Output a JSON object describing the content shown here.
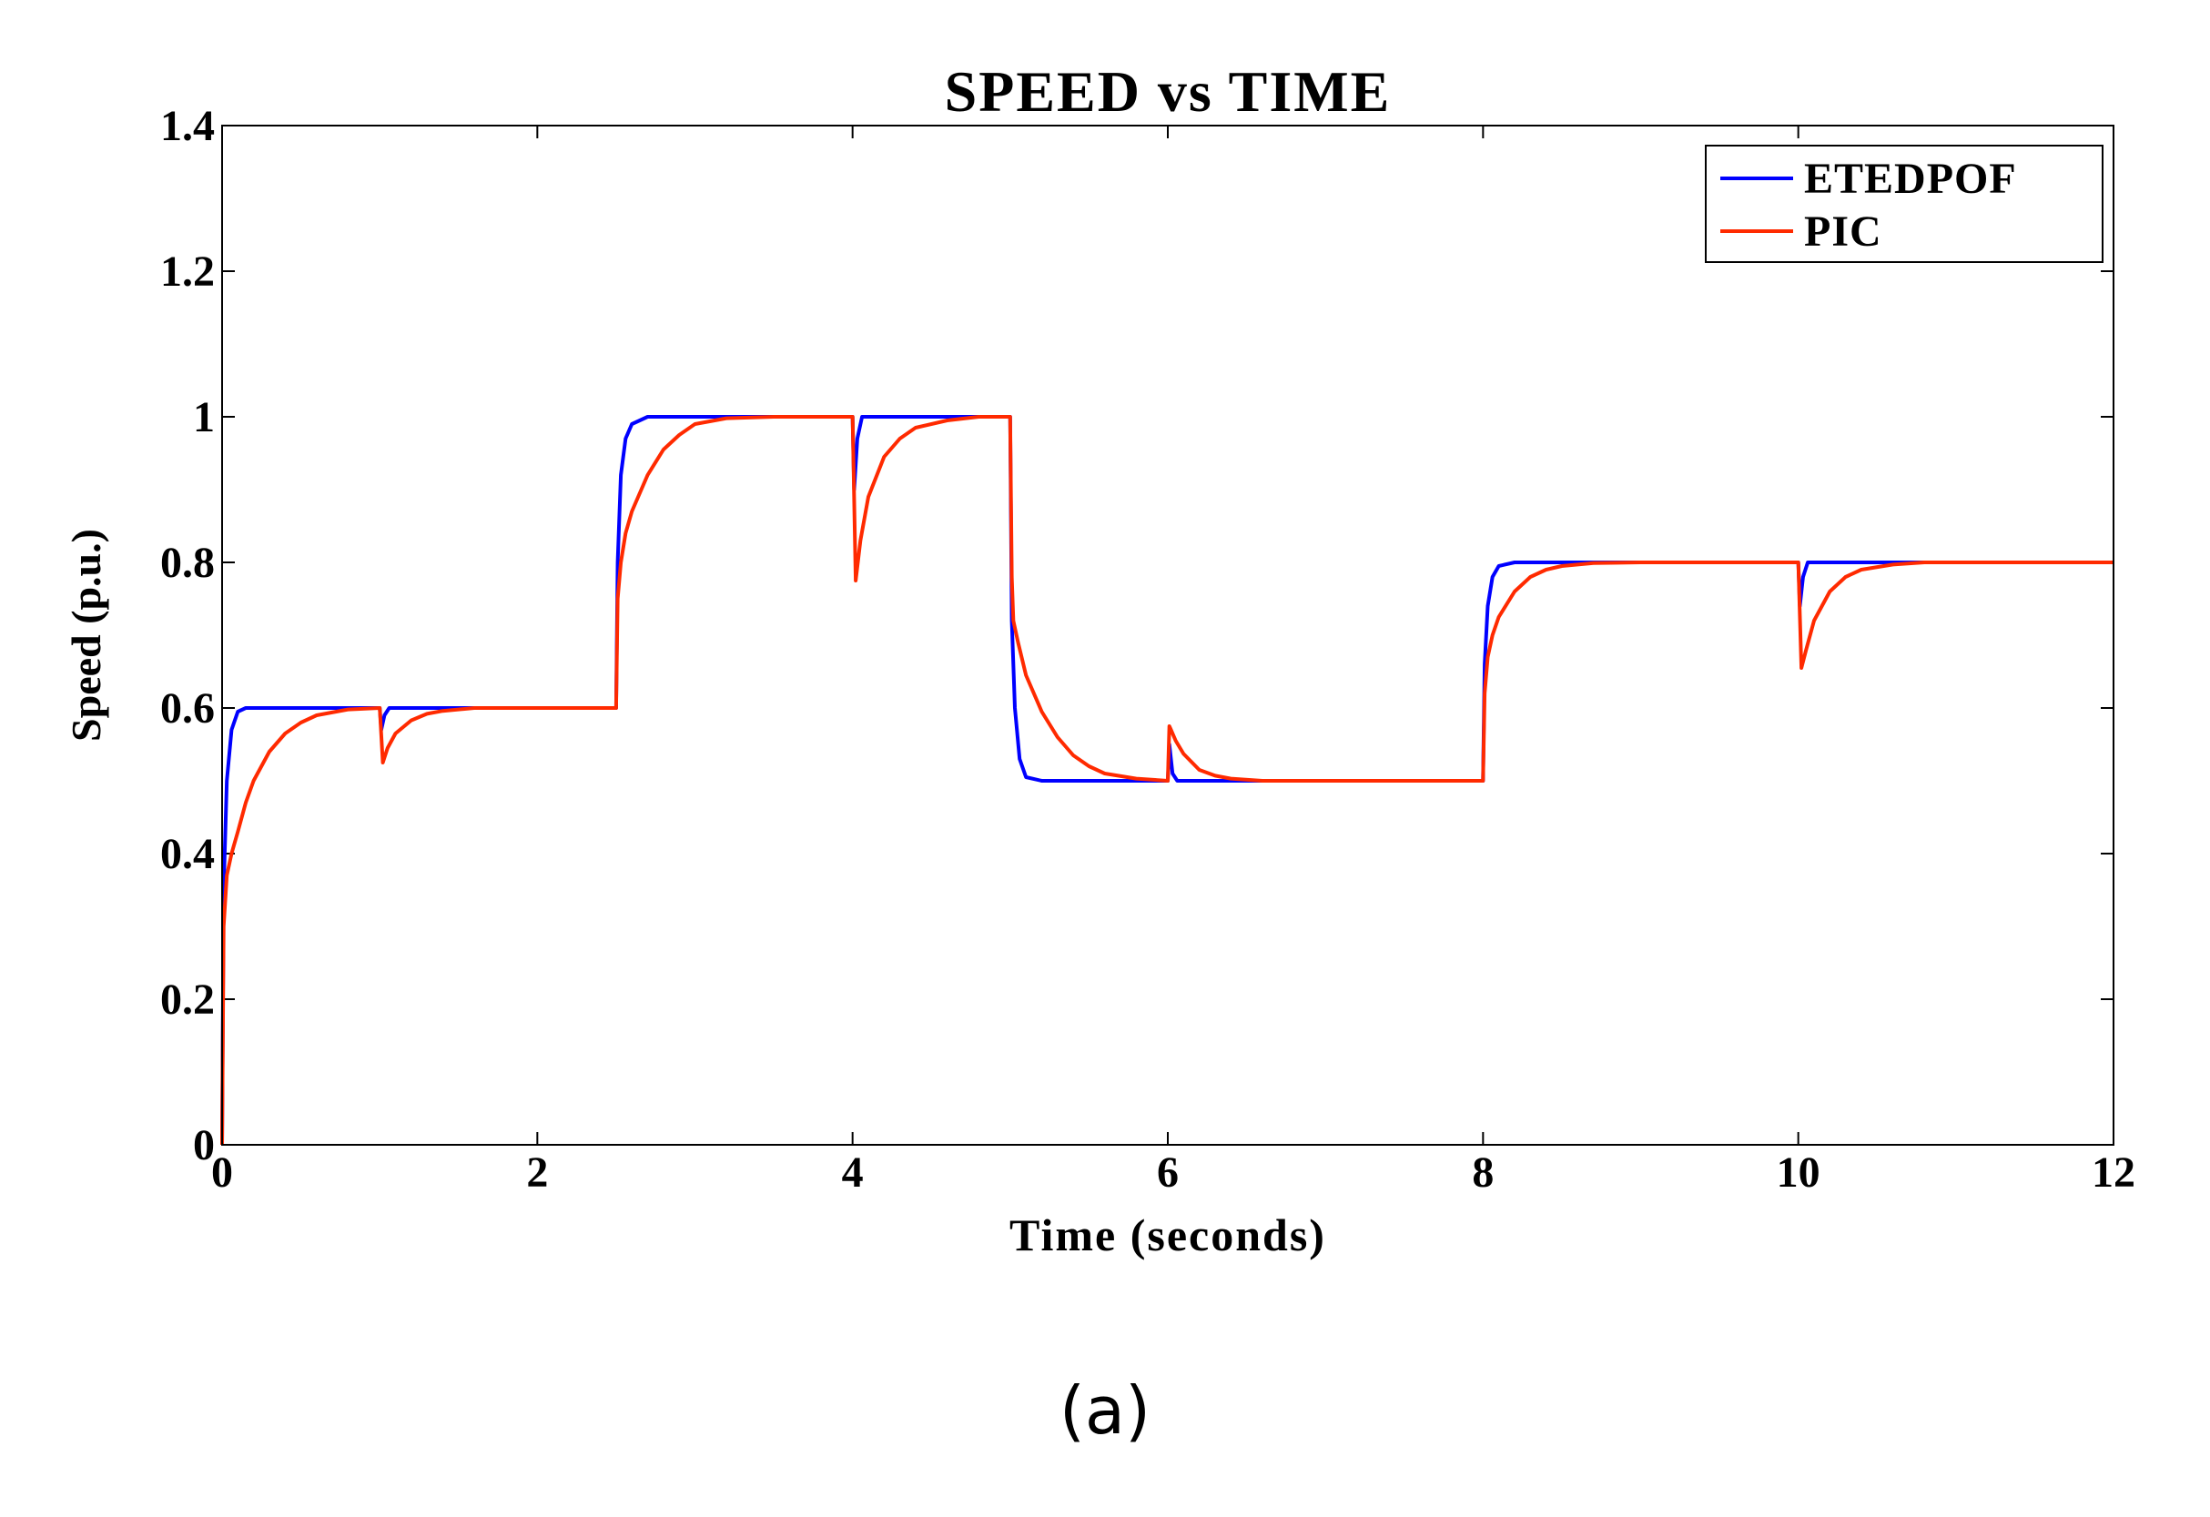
{
  "caption": "(a)",
  "chart_data": {
    "type": "line",
    "title": "SPEED vs TIME",
    "xlabel": "Time (seconds)",
    "ylabel": "Speed (p.u.)",
    "xlim": [
      0,
      12
    ],
    "ylim": [
      0,
      1.4
    ],
    "xticks": [
      0,
      2,
      4,
      6,
      8,
      10,
      12
    ],
    "xtick_labels": [
      "0",
      "2",
      "4",
      "6",
      "8",
      "10",
      "12"
    ],
    "yticks": [
      0,
      0.2,
      0.4,
      0.6,
      0.8,
      1.0,
      1.2,
      1.4
    ],
    "ytick_labels": [
      "0",
      "0.2",
      "0.4",
      "0.6",
      "0.8",
      "1",
      "1.2",
      "1.4"
    ],
    "grid": false,
    "legend_position": "top-right",
    "series": [
      {
        "name": "ETEDPOF",
        "color": "#0000ff",
        "x": [
          0,
          0.01,
          0.03,
          0.06,
          0.1,
          0.15,
          1.0,
          1.01,
          1.03,
          1.06,
          2.5,
          2.51,
          2.53,
          2.56,
          2.6,
          2.7,
          4.0,
          4.01,
          4.03,
          4.06,
          4.15,
          5.0,
          5.01,
          5.03,
          5.06,
          5.1,
          5.2,
          6.0,
          6.01,
          6.03,
          6.06,
          8.0,
          8.01,
          8.03,
          8.06,
          8.1,
          8.2,
          10.0,
          10.01,
          10.03,
          10.06,
          12.0
        ],
        "y": [
          0.0,
          0.35,
          0.5,
          0.57,
          0.595,
          0.6,
          0.6,
          0.57,
          0.59,
          0.6,
          0.6,
          0.8,
          0.92,
          0.97,
          0.99,
          1.0,
          1.0,
          0.9,
          0.97,
          1.0,
          1.0,
          1.0,
          0.72,
          0.6,
          0.53,
          0.505,
          0.5,
          0.5,
          0.55,
          0.51,
          0.5,
          0.5,
          0.66,
          0.74,
          0.78,
          0.795,
          0.8,
          0.8,
          0.74,
          0.78,
          0.8,
          0.8
        ]
      },
      {
        "name": "PIC",
        "color": "#ff2a00",
        "x": [
          0,
          0.01,
          0.03,
          0.06,
          0.1,
          0.15,
          0.2,
          0.3,
          0.4,
          0.5,
          0.6,
          0.8,
          1.0,
          1.02,
          1.05,
          1.1,
          1.2,
          1.3,
          1.4,
          1.6,
          2.5,
          2.51,
          2.53,
          2.56,
          2.6,
          2.7,
          2.8,
          2.9,
          3.0,
          3.2,
          3.5,
          4.0,
          4.02,
          4.05,
          4.1,
          4.2,
          4.3,
          4.4,
          4.6,
          4.8,
          5.0,
          5.01,
          5.02,
          5.05,
          5.1,
          5.2,
          5.3,
          5.4,
          5.5,
          5.6,
          5.8,
          6.0,
          6.01,
          6.02,
          6.05,
          6.1,
          6.2,
          6.3,
          6.4,
          6.6,
          8.0,
          8.01,
          8.03,
          8.06,
          8.1,
          8.2,
          8.3,
          8.4,
          8.5,
          8.7,
          9.0,
          10.0,
          10.02,
          10.05,
          10.1,
          10.2,
          10.3,
          10.4,
          10.6,
          10.8,
          12.0
        ],
        "y": [
          0.0,
          0.3,
          0.37,
          0.4,
          0.43,
          0.47,
          0.5,
          0.54,
          0.565,
          0.58,
          0.59,
          0.598,
          0.6,
          0.525,
          0.545,
          0.565,
          0.583,
          0.592,
          0.596,
          0.6,
          0.6,
          0.75,
          0.8,
          0.84,
          0.87,
          0.92,
          0.955,
          0.975,
          0.99,
          0.998,
          1.0,
          1.0,
          0.775,
          0.83,
          0.89,
          0.945,
          0.97,
          0.985,
          0.995,
          1.0,
          1.0,
          0.78,
          0.72,
          0.69,
          0.645,
          0.595,
          0.56,
          0.535,
          0.52,
          0.51,
          0.503,
          0.5,
          0.575,
          0.57,
          0.555,
          0.537,
          0.515,
          0.507,
          0.503,
          0.5,
          0.5,
          0.62,
          0.67,
          0.7,
          0.725,
          0.76,
          0.78,
          0.79,
          0.795,
          0.799,
          0.8,
          0.8,
          0.655,
          0.68,
          0.72,
          0.76,
          0.78,
          0.79,
          0.797,
          0.8,
          0.8
        ]
      }
    ]
  }
}
